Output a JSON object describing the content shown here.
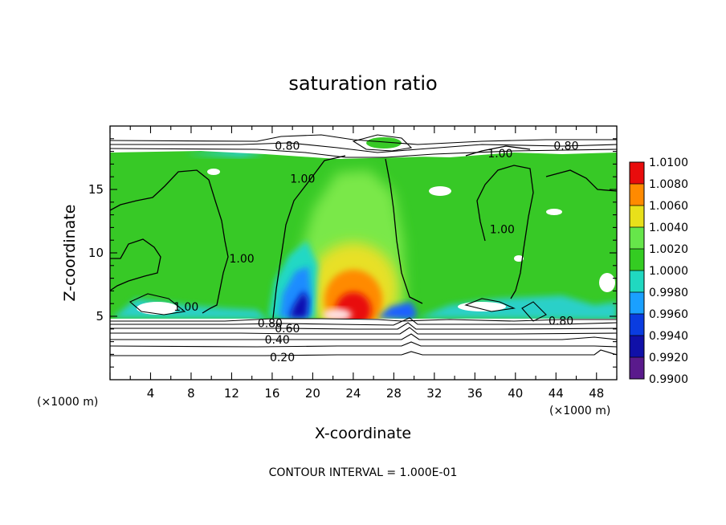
{
  "chart_data": {
    "type": "heatmap",
    "title": "saturation ratio",
    "xlabel": "X-coordinate",
    "ylabel": "Z-coordinate",
    "x_unit": "(×1000 m)",
    "z_unit": "(×1000 m)",
    "footer": "CONTOUR INTERVAL = 1.000E-01",
    "xlim": [
      0,
      50
    ],
    "ylim": [
      0,
      20
    ],
    "x_ticks": [
      4,
      8,
      12,
      16,
      20,
      24,
      28,
      32,
      36,
      40,
      44,
      48
    ],
    "y_ticks": [
      5,
      10,
      15
    ],
    "colorbar": {
      "levels": [
        "0.9900",
        "0.9920",
        "0.9940",
        "0.9960",
        "0.9980",
        "1.0000",
        "1.0020",
        "1.0040",
        "1.0060",
        "1.0080",
        "1.0100"
      ],
      "colors": [
        "#5a1a8c",
        "#1010a8",
        "#0a3ce0",
        "#1aa0ff",
        "#20d8c0",
        "#34cc22",
        "#66e64a",
        "#e8e01a",
        "#ff8a00",
        "#e80c0c",
        "#ff9090"
      ]
    },
    "contour_labels": [
      {
        "text": "0.80",
        "x": 17.5,
        "y": 18.4
      },
      {
        "text": "0.80",
        "x": 45,
        "y": 18.4
      },
      {
        "text": "1.00",
        "x": 38.5,
        "y": 17.8
      },
      {
        "text": "1.00",
        "x": 19,
        "y": 15.8
      },
      {
        "text": "1.00",
        "x": 13,
        "y": 9.5
      },
      {
        "text": "1.00",
        "x": 38.7,
        "y": 11.8
      },
      {
        "text": "1.00",
        "x": 7.5,
        "y": 5.7
      },
      {
        "text": "0.80",
        "x": 15.8,
        "y": 4.4
      },
      {
        "text": "0.60",
        "x": 17.5,
        "y": 4.0
      },
      {
        "text": "0.40",
        "x": 16.5,
        "y": 3.1
      },
      {
        "text": "0.20",
        "x": 17,
        "y": 1.7
      },
      {
        "text": "0.80",
        "x": 44.5,
        "y": 4.6
      }
    ]
  }
}
